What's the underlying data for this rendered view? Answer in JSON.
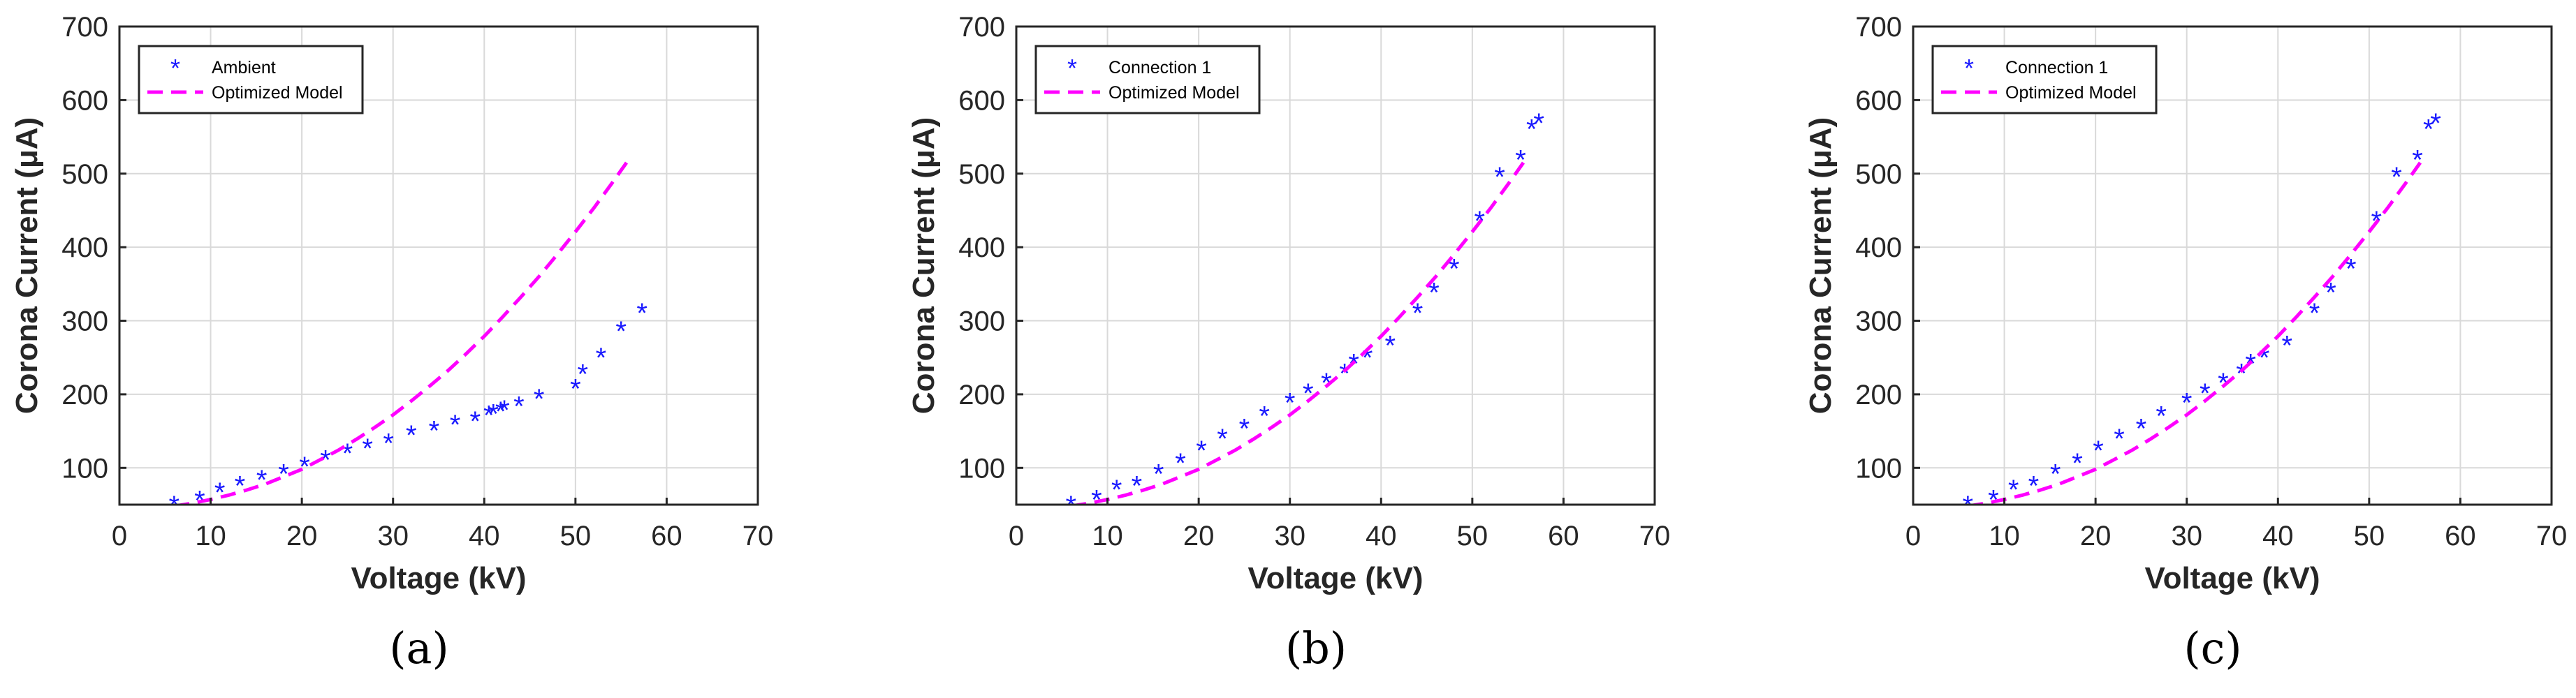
{
  "chart_data": [
    {
      "type": "scatter",
      "panel_label": "a",
      "xlabel": "Voltage (kV)",
      "ylabel": "Corona Current (μA)",
      "xlim": [
        0,
        70
      ],
      "ylim": [
        50,
        700
      ],
      "xticks": [
        0,
        10,
        20,
        30,
        40,
        50,
        60,
        70
      ],
      "yticks": [
        100,
        200,
        300,
        400,
        500,
        600,
        700
      ],
      "grid": true,
      "legend_position": "top-left",
      "series": [
        {
          "name": "Ambient",
          "style": "markers",
          "marker": "*",
          "color": "#1a1aff",
          "x": [
            6.0,
            8.8,
            11.0,
            13.2,
            15.6,
            18.0,
            20.3,
            22.6,
            25.0,
            27.2,
            29.5,
            32.0,
            34.5,
            36.8,
            39.0,
            40.5,
            41.0,
            41.8,
            42.2,
            43.8,
            46.0,
            50.0,
            50.8,
            52.8,
            55.0,
            57.3
          ],
          "y": [
            50,
            57,
            68,
            77,
            85,
            93,
            103,
            112,
            121,
            128,
            135,
            146,
            152,
            160,
            165,
            173,
            175,
            178,
            180,
            185,
            195,
            209,
            229,
            251,
            287,
            312
          ]
        },
        {
          "name": "Optimized Model",
          "style": "dashed-line",
          "color": "#ff00ff",
          "x": [
            6,
            8,
            10,
            12,
            14,
            16,
            18,
            20,
            22,
            24,
            26,
            28,
            30,
            32,
            34,
            36,
            38,
            40,
            42,
            44,
            46,
            48,
            50,
            52,
            54,
            55.6
          ],
          "y": [
            48,
            52,
            57,
            63,
            70,
            78,
            88,
            98,
            111,
            124,
            139,
            155,
            172,
            191,
            211,
            232,
            255,
            279,
            305,
            332,
            360,
            390,
            421,
            453,
            487,
            515
          ]
        }
      ]
    },
    {
      "type": "scatter",
      "panel_label": "b",
      "xlabel": "Voltage (kV)",
      "ylabel": "Corona Current (μA)",
      "xlim": [
        0,
        70
      ],
      "ylim": [
        50,
        700
      ],
      "xticks": [
        0,
        10,
        20,
        30,
        40,
        50,
        60,
        70
      ],
      "yticks": [
        100,
        200,
        300,
        400,
        500,
        600,
        700
      ],
      "grid": true,
      "legend_position": "top-left",
      "series": [
        {
          "name": "Connection 1",
          "style": "markers",
          "marker": "*",
          "color": "#1a1aff",
          "x": [
            6.0,
            8.8,
            11.0,
            13.2,
            15.6,
            18.0,
            20.3,
            22.6,
            25.0,
            27.2,
            30.0,
            32.0,
            34.0,
            36.0,
            37.0,
            38.5,
            41.0,
            44.0,
            45.8,
            48.0,
            50.8,
            53.0,
            55.3,
            56.5,
            57.3
          ],
          "y": [
            50,
            58,
            72,
            77,
            93,
            108,
            125,
            141,
            155,
            172,
            190,
            203,
            217,
            230,
            243,
            251,
            268,
            312,
            340,
            372,
            437,
            497,
            520,
            562,
            570
          ]
        },
        {
          "name": "Optimized Model",
          "style": "dashed-line",
          "color": "#ff00ff",
          "x": [
            6,
            8,
            10,
            12,
            14,
            16,
            18,
            20,
            22,
            24,
            26,
            28,
            30,
            32,
            34,
            36,
            38,
            40,
            42,
            44,
            46,
            48,
            50,
            52,
            54,
            55.6
          ],
          "y": [
            48,
            52,
            57,
            63,
            70,
            78,
            88,
            98,
            111,
            124,
            139,
            155,
            172,
            191,
            211,
            232,
            255,
            279,
            305,
            332,
            360,
            390,
            421,
            453,
            487,
            515
          ]
        }
      ]
    },
    {
      "type": "scatter",
      "panel_label": "c",
      "xlabel": "Voltage (kV)",
      "ylabel": "Corona Current (μA)",
      "xlim": [
        0,
        70
      ],
      "ylim": [
        50,
        700
      ],
      "xticks": [
        0,
        10,
        20,
        30,
        40,
        50,
        60,
        70
      ],
      "yticks": [
        100,
        200,
        300,
        400,
        500,
        600,
        700
      ],
      "grid": true,
      "legend_position": "top-left",
      "series": [
        {
          "name": "Connection 1",
          "style": "markers",
          "marker": "*",
          "color": "#1a1aff",
          "x": [
            6.0,
            8.8,
            11.0,
            13.2,
            15.6,
            18.0,
            20.3,
            22.6,
            25.0,
            27.2,
            30.0,
            32.0,
            34.0,
            36.0,
            37.0,
            38.5,
            41.0,
            44.0,
            45.8,
            48.0,
            50.8,
            53.0,
            55.3,
            56.5,
            57.3
          ],
          "y": [
            50,
            58,
            72,
            77,
            93,
            108,
            125,
            141,
            155,
            172,
            190,
            203,
            217,
            230,
            243,
            251,
            268,
            312,
            340,
            372,
            437,
            497,
            520,
            562,
            570
          ]
        },
        {
          "name": "Optimized Model",
          "style": "dashed-line",
          "color": "#ff00ff",
          "x": [
            6,
            8,
            10,
            12,
            14,
            16,
            18,
            20,
            22,
            24,
            26,
            28,
            30,
            32,
            34,
            36,
            38,
            40,
            42,
            44,
            46,
            48,
            50,
            52,
            54,
            55.6
          ],
          "y": [
            48,
            52,
            57,
            63,
            70,
            78,
            88,
            98,
            111,
            124,
            139,
            155,
            172,
            191,
            211,
            232,
            255,
            279,
            305,
            332,
            360,
            390,
            421,
            453,
            487,
            515
          ]
        }
      ]
    }
  ],
  "captions": [
    "(a)",
    "(b)",
    "(c)"
  ]
}
